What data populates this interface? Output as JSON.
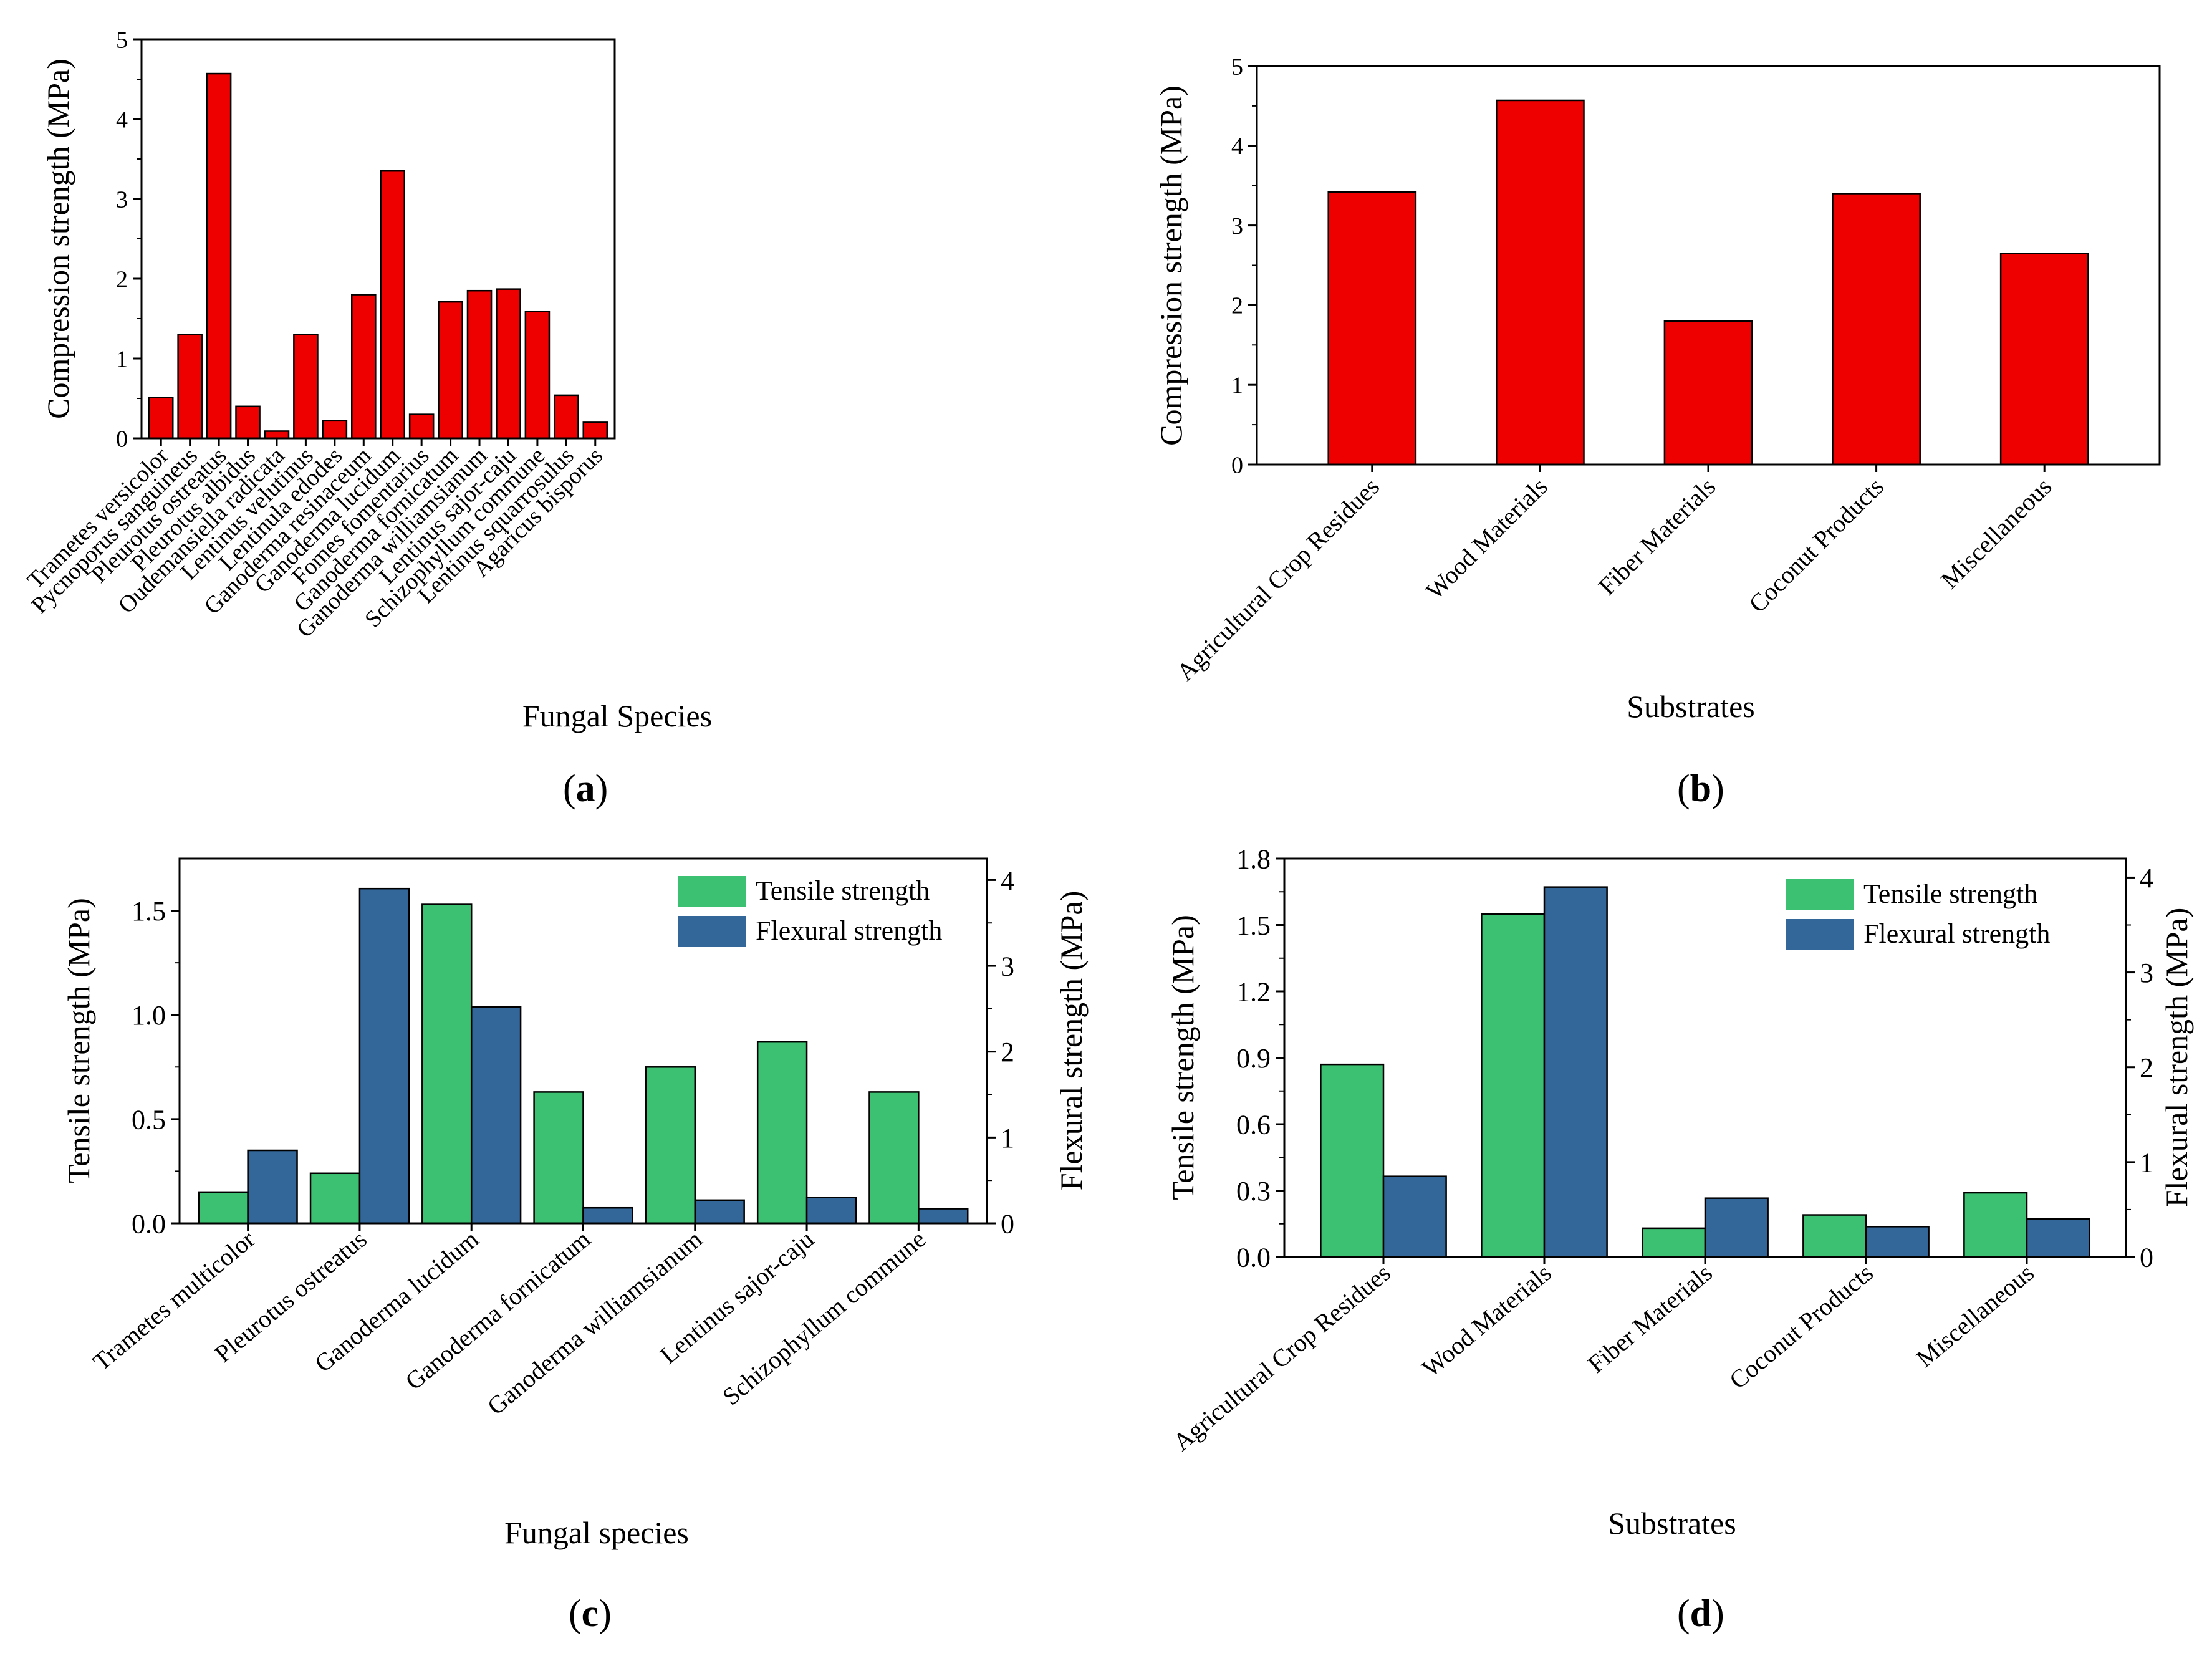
{
  "figure": {
    "colors": {
      "compression": "#ee0000",
      "tensile": "#3cc071",
      "flexural": "#336699",
      "axis": "#000000"
    }
  },
  "chart_data": [
    {
      "id": "a",
      "panel_label": "a",
      "type": "bar",
      "title": "",
      "xlabel": "Fungal Species",
      "ylabel": "Compression strength (MPa)",
      "ylim": [
        0,
        5
      ],
      "yticks": [
        "0",
        "1",
        "2",
        "3",
        "4",
        "5"
      ],
      "categories": [
        "Trametes versicolor",
        "Pycnoporus sanguineus",
        "Pleurotus ostreatus",
        "Pleurotus albidus",
        "Oudemansiella radicata",
        "Lentinus velutinus",
        "Lentinula edodes",
        "Ganoderma resinaceum",
        "Ganoderma lucidum",
        "Fomes fomentarius",
        "Ganoderma fornicatum",
        "Ganoderma williamsianum",
        "Lentinus sajor-caju",
        "Schizophyllum commune",
        "Lentinus squarrosulus",
        "Agaricus bisporus"
      ],
      "series": [
        {
          "name": "Compression strength",
          "color": "#ee0000",
          "values": [
            0.51,
            1.3,
            4.57,
            0.4,
            0.09,
            1.3,
            0.22,
            1.8,
            3.35,
            0.3,
            1.71,
            1.85,
            1.87,
            1.59,
            0.54,
            0.2
          ]
        }
      ]
    },
    {
      "id": "b",
      "panel_label": "b",
      "type": "bar",
      "title": "",
      "xlabel": "Substrates",
      "ylabel": "Compression strength (MPa)",
      "ylim": [
        0,
        5
      ],
      "yticks": [
        "0",
        "1",
        "2",
        "3",
        "4",
        "5"
      ],
      "categories": [
        "Agricultural Crop Residues",
        "Wood Materials",
        "Fiber Materials",
        "Coconut Products",
        "Miscellaneous"
      ],
      "series": [
        {
          "name": "Compression strength",
          "color": "#ee0000",
          "values": [
            3.42,
            4.57,
            1.8,
            3.4,
            2.65
          ]
        }
      ]
    },
    {
      "id": "c",
      "panel_label": "c",
      "type": "bar",
      "title": "",
      "xlabel": "Fungal species",
      "ylabel": "Tensile strength (MPa)",
      "ylabel_right": "Flexural strength (MPa)",
      "ylim": [
        0,
        1.75
      ],
      "ylim_right": [
        0,
        4.25
      ],
      "yticks": [
        "0.0",
        "0.5",
        "1.0",
        "1.5"
      ],
      "yticks_right": [
        "0",
        "1",
        "2",
        "3",
        "4"
      ],
      "legend": [
        "Tensile strength",
        "Flexural strength"
      ],
      "legend_position": "top-right",
      "categories": [
        "Trametes multicolor",
        "Pleurotus ostreatus",
        "Ganoderma lucidum",
        "Ganoderma fornicatum",
        "Ganoderma williamsianum",
        "Lentinus sajor-caju",
        "Schizophyllum commune"
      ],
      "series": [
        {
          "name": "Tensile strength",
          "axis": "left",
          "color": "#3cc071",
          "values": [
            0.15,
            0.24,
            1.53,
            0.63,
            0.75,
            0.87,
            0.63
          ]
        },
        {
          "name": "Flexural strength",
          "axis": "right",
          "color": "#336699",
          "values": [
            0.85,
            3.9,
            2.52,
            0.18,
            0.27,
            0.3,
            0.17
          ]
        }
      ]
    },
    {
      "id": "d",
      "panel_label": "d",
      "type": "bar",
      "title": "",
      "xlabel": "Substrates",
      "ylabel": "Tensile strength (MPa)",
      "ylabel_right": "Flexural strength (MPa)",
      "ylim": [
        0,
        1.8
      ],
      "ylim_right": [
        0,
        4.2
      ],
      "yticks": [
        "0.0",
        "0.3",
        "0.6",
        "0.9",
        "1.2",
        "1.5",
        "1.8"
      ],
      "yticks_right": [
        "0",
        "1",
        "2",
        "3",
        "4"
      ],
      "legend": [
        "Tensile strength",
        "Flexural strength"
      ],
      "legend_position": "top-right",
      "categories": [
        "Agricultural Crop Residues",
        "Wood Materials",
        "Fiber Materials",
        "Coconut Products",
        "Miscellaneous"
      ],
      "series": [
        {
          "name": "Tensile strength",
          "axis": "left",
          "color": "#3cc071",
          "values": [
            0.87,
            1.55,
            0.13,
            0.19,
            0.29
          ]
        },
        {
          "name": "Flexural strength",
          "axis": "right",
          "color": "#336699",
          "values": [
            0.85,
            3.9,
            0.62,
            0.32,
            0.4
          ]
        }
      ]
    }
  ]
}
